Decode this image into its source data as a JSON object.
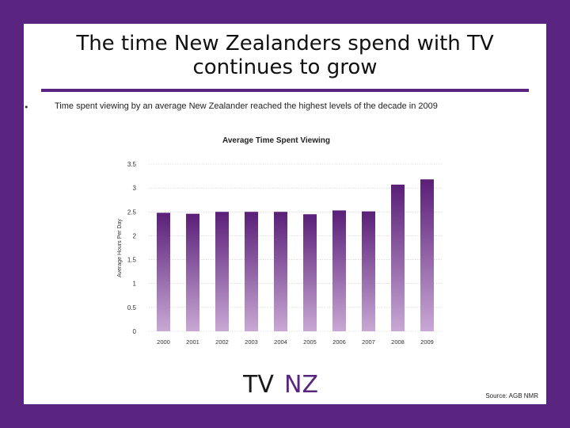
{
  "slide": {
    "title_line1": "The time New Zealanders spend with TV",
    "title_line2": "continues to grow",
    "bullet_marker": "•",
    "bullet_text": "Time spent viewing by an average New Zealander reached the highest levels of the decade in 2009",
    "source": "Source: AGB NMR",
    "logo_text": "TVNZ"
  },
  "colors": {
    "frame": "#5a2580",
    "bar_top": "#5a1f78",
    "bar_bottom": "#c8a8d4"
  },
  "chart_data": {
    "type": "bar",
    "title": "Average Time Spent Viewing",
    "ylabel": "Average Hours Per Day",
    "xlabel": "",
    "categories": [
      "2000",
      "2001",
      "2002",
      "2003",
      "2004",
      "2005",
      "2006",
      "2007",
      "2008",
      "2009"
    ],
    "values": [
      2.48,
      2.46,
      2.5,
      2.5,
      2.5,
      2.45,
      2.53,
      2.51,
      3.07,
      3.18
    ],
    "ylim": [
      0,
      3.5
    ],
    "yticks": [
      "0",
      "0.5",
      "1",
      "1.5",
      "2",
      "2.5",
      "3",
      "3.5"
    ],
    "grid": true,
    "legend": "none"
  }
}
